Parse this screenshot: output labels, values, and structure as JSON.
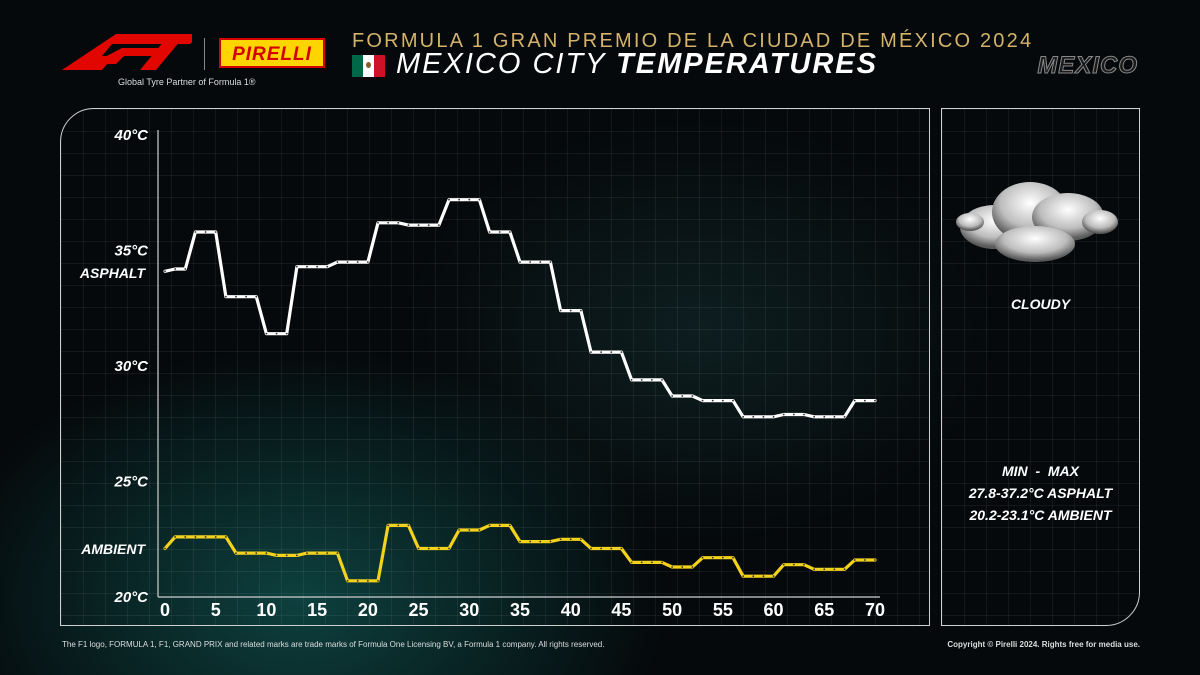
{
  "header": {
    "event_title": "FORMULA 1 GRAN PREMIO DE LA CIUDAD DE MÉXICO 2024",
    "subtitle_light": "MEXICO CITY ",
    "subtitle_bold": "TEMPERATURES",
    "country_word": "MEXICO",
    "partner_text": "Global Tyre Partner of Formula 1®",
    "pirelli_logo_text": "PIRELLI"
  },
  "colors": {
    "asphalt": "#ffffff",
    "ambient": "#f2d21b",
    "accent_gold": "#d4b26a",
    "f1_red": "#e10600",
    "pirelli_yellow": "#ffd500"
  },
  "weather": {
    "icon": "cloud-icon",
    "label": "CLOUDY"
  },
  "minmax": {
    "heading": "MIN  -  MAX",
    "asphalt": "27.8-37.2°C ASPHALT",
    "ambient": "20.2-23.1°C AMBIENT"
  },
  "footer": {
    "left": "The F1 logo, FORMULA 1, F1, GRAND PRIX and related marks are trade marks of Formula One Licensing BV, a Formula 1 company. All rights reserved.",
    "right": "Copyright © Pirelli 2024. Rights free for media use."
  },
  "chart_data": {
    "type": "line",
    "title": "MEXICO CITY TEMPERATURES",
    "xlabel": "",
    "ylabel": "",
    "xlim": [
      0,
      71
    ],
    "ylim": [
      20,
      40
    ],
    "xticks": [
      0,
      5,
      10,
      15,
      20,
      25,
      30,
      35,
      40,
      45,
      50,
      55,
      60,
      65,
      70
    ],
    "yticks": [
      {
        "value": 40,
        "label": "40°C"
      },
      {
        "value": 35,
        "label": "35°C"
      },
      {
        "value": 30,
        "label": "30°C"
      },
      {
        "value": 25,
        "label": "25°C"
      },
      {
        "value": 20,
        "label": "20°C"
      }
    ],
    "grid": true,
    "series": [
      {
        "name": "ASPHALT",
        "color": "#ffffff",
        "points": [
          [
            0,
            34.1
          ],
          [
            1,
            34.2
          ],
          [
            2,
            34.2
          ],
          [
            3,
            35.8
          ],
          [
            4,
            35.8
          ],
          [
            5,
            35.8
          ],
          [
            6,
            33.0
          ],
          [
            7,
            33.0
          ],
          [
            8,
            33.0
          ],
          [
            9,
            33.0
          ],
          [
            10,
            31.4
          ],
          [
            11,
            31.4
          ],
          [
            12,
            31.4
          ],
          [
            13,
            34.3
          ],
          [
            14,
            34.3
          ],
          [
            15,
            34.3
          ],
          [
            16,
            34.3
          ],
          [
            17,
            34.5
          ],
          [
            18,
            34.5
          ],
          [
            19,
            34.5
          ],
          [
            20,
            34.5
          ],
          [
            21,
            36.2
          ],
          [
            22,
            36.2
          ],
          [
            23,
            36.2
          ],
          [
            24,
            36.1
          ],
          [
            25,
            36.1
          ],
          [
            26,
            36.1
          ],
          [
            27,
            36.1
          ],
          [
            28,
            37.2
          ],
          [
            29,
            37.2
          ],
          [
            30,
            37.2
          ],
          [
            31,
            37.2
          ],
          [
            32,
            35.8
          ],
          [
            33,
            35.8
          ],
          [
            34,
            35.8
          ],
          [
            35,
            34.5
          ],
          [
            36,
            34.5
          ],
          [
            37,
            34.5
          ],
          [
            38,
            34.5
          ],
          [
            39,
            32.4
          ],
          [
            40,
            32.4
          ],
          [
            41,
            32.4
          ],
          [
            42,
            30.6
          ],
          [
            43,
            30.6
          ],
          [
            44,
            30.6
          ],
          [
            45,
            30.6
          ],
          [
            46,
            29.4
          ],
          [
            47,
            29.4
          ],
          [
            48,
            29.4
          ],
          [
            49,
            29.4
          ],
          [
            50,
            28.7
          ],
          [
            51,
            28.7
          ],
          [
            52,
            28.7
          ],
          [
            53,
            28.5
          ],
          [
            54,
            28.5
          ],
          [
            55,
            28.5
          ],
          [
            56,
            28.5
          ],
          [
            57,
            27.8
          ],
          [
            58,
            27.8
          ],
          [
            59,
            27.8
          ],
          [
            60,
            27.8
          ],
          [
            61,
            27.9
          ],
          [
            62,
            27.9
          ],
          [
            63,
            27.9
          ],
          [
            64,
            27.8
          ],
          [
            65,
            27.8
          ],
          [
            66,
            27.8
          ],
          [
            67,
            27.8
          ],
          [
            68,
            28.5
          ],
          [
            69,
            28.5
          ],
          [
            70,
            28.5
          ]
        ]
      },
      {
        "name": "AMBIENT",
        "color": "#f2d21b",
        "points": [
          [
            0,
            22.1
          ],
          [
            1,
            22.6
          ],
          [
            2,
            22.6
          ],
          [
            3,
            22.6
          ],
          [
            4,
            22.6
          ],
          [
            5,
            22.6
          ],
          [
            6,
            22.6
          ],
          [
            7,
            21.9
          ],
          [
            8,
            21.9
          ],
          [
            9,
            21.9
          ],
          [
            10,
            21.9
          ],
          [
            11,
            21.8
          ],
          [
            12,
            21.8
          ],
          [
            13,
            21.8
          ],
          [
            14,
            21.9
          ],
          [
            15,
            21.9
          ],
          [
            16,
            21.9
          ],
          [
            17,
            21.9
          ],
          [
            18,
            20.7
          ],
          [
            19,
            20.7
          ],
          [
            20,
            20.7
          ],
          [
            21,
            20.7
          ],
          [
            22,
            23.1
          ],
          [
            23,
            23.1
          ],
          [
            24,
            23.1
          ],
          [
            25,
            22.1
          ],
          [
            26,
            22.1
          ],
          [
            27,
            22.1
          ],
          [
            28,
            22.1
          ],
          [
            29,
            22.9
          ],
          [
            30,
            22.9
          ],
          [
            31,
            22.9
          ],
          [
            32,
            23.1
          ],
          [
            33,
            23.1
          ],
          [
            34,
            23.1
          ],
          [
            35,
            22.4
          ],
          [
            36,
            22.4
          ],
          [
            37,
            22.4
          ],
          [
            38,
            22.4
          ],
          [
            39,
            22.5
          ],
          [
            40,
            22.5
          ],
          [
            41,
            22.5
          ],
          [
            42,
            22.1
          ],
          [
            43,
            22.1
          ],
          [
            44,
            22.1
          ],
          [
            45,
            22.1
          ],
          [
            46,
            21.5
          ],
          [
            47,
            21.5
          ],
          [
            48,
            21.5
          ],
          [
            49,
            21.5
          ],
          [
            50,
            21.3
          ],
          [
            51,
            21.3
          ],
          [
            52,
            21.3
          ],
          [
            53,
            21.7
          ],
          [
            54,
            21.7
          ],
          [
            55,
            21.7
          ],
          [
            56,
            21.7
          ],
          [
            57,
            20.9
          ],
          [
            58,
            20.9
          ],
          [
            59,
            20.9
          ],
          [
            60,
            20.9
          ],
          [
            61,
            21.4
          ],
          [
            62,
            21.4
          ],
          [
            63,
            21.4
          ],
          [
            64,
            21.2
          ],
          [
            65,
            21.2
          ],
          [
            66,
            21.2
          ],
          [
            67,
            21.2
          ],
          [
            68,
            21.6
          ],
          [
            69,
            21.6
          ],
          [
            70,
            21.6
          ]
        ]
      }
    ]
  }
}
